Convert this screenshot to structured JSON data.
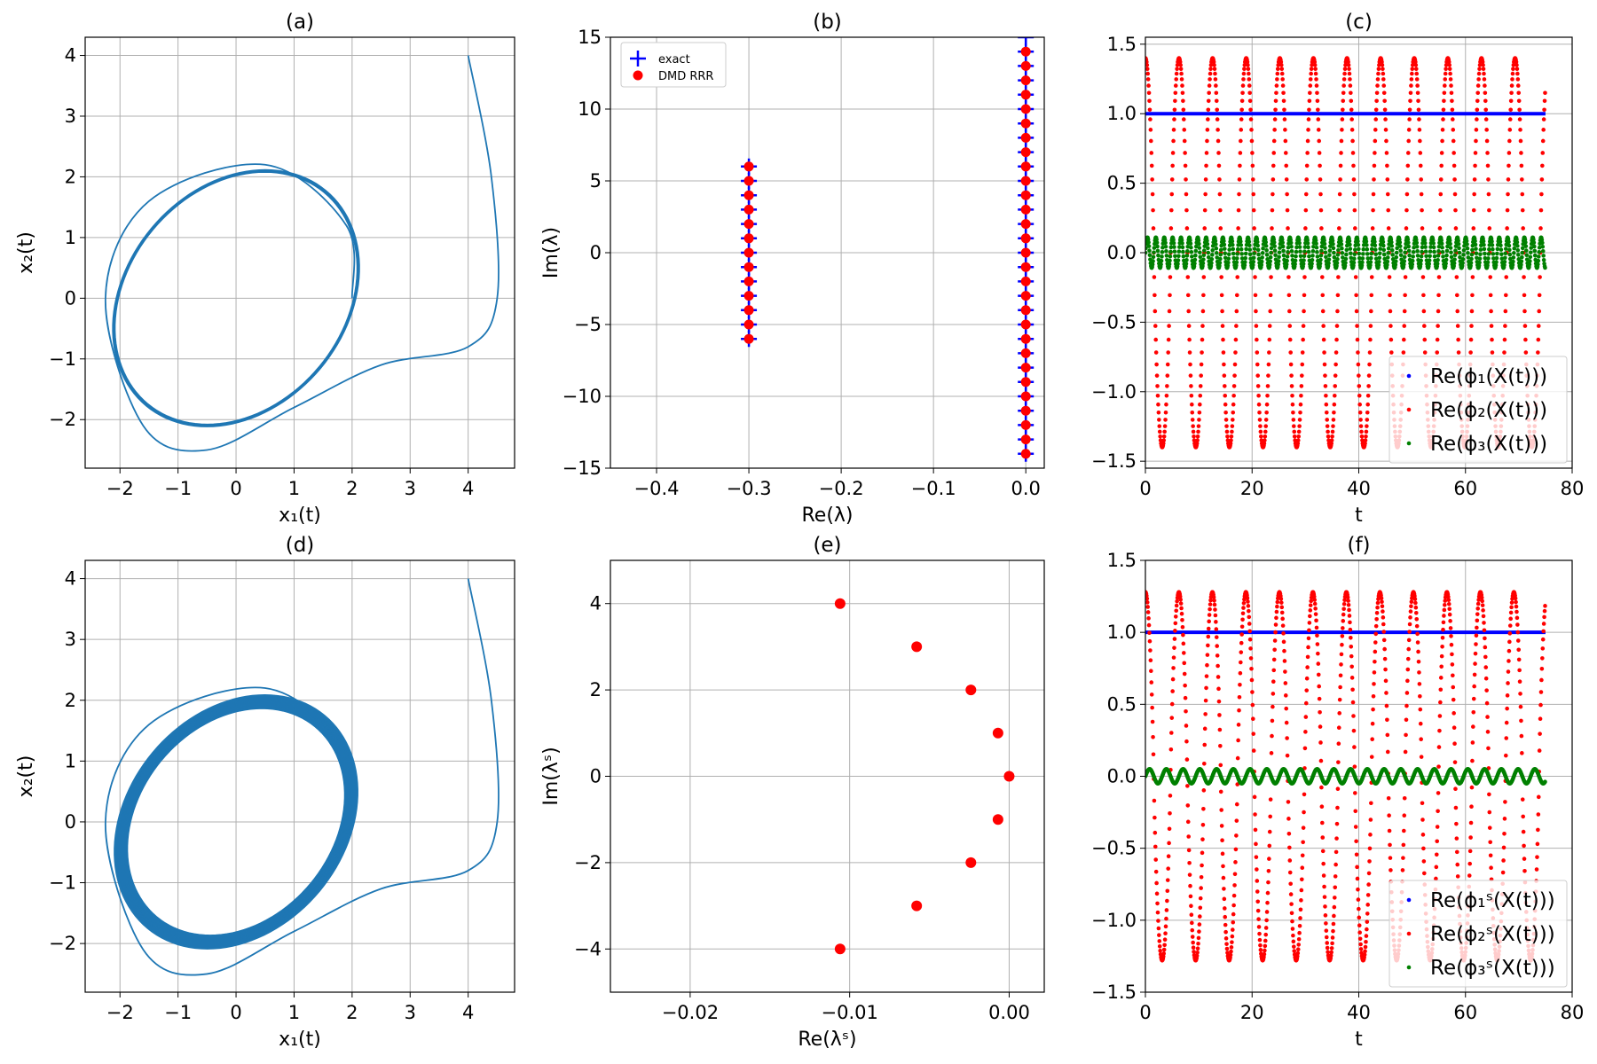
{
  "colors": {
    "trajectory": "#1f77b4",
    "dmd": "#ff0000",
    "exact": "#0000ff",
    "phi1": "#0000ff",
    "phi2": "#ff0000",
    "phi3": "#008000",
    "grid": "#b0b0b0"
  },
  "chart_data": [
    {
      "id": "a",
      "type": "line",
      "title": "(a)",
      "xlabel": "x₁(t)",
      "ylabel": "x₂(t)",
      "xlim": [
        -2.6,
        4.8
      ],
      "ylim": [
        -2.8,
        4.3
      ],
      "xticks": [
        -2,
        -1,
        0,
        1,
        2,
        3,
        4
      ],
      "yticks": [
        -2,
        -1,
        0,
        1,
        2,
        3,
        4
      ],
      "grid": true,
      "series": [
        {
          "name": "trajectory",
          "description": "Van der Pol type trajectory starting at (4,4), converging to a single limit cycle",
          "start": [
            4,
            4
          ],
          "transient": [
            [
              4.0,
              4.0
            ],
            [
              4.4,
              2.0
            ],
            [
              4.5,
              0.0
            ],
            [
              4.0,
              -0.8
            ],
            [
              2.5,
              -1.1
            ],
            [
              1.0,
              -1.8
            ],
            [
              -0.5,
              -2.5
            ],
            [
              -1.6,
              -2.1
            ],
            [
              -2.25,
              0.0
            ],
            [
              -1.5,
              1.6
            ],
            [
              0.5,
              2.2
            ],
            [
              1.9,
              1.2
            ],
            [
              2.0,
              0.0
            ]
          ],
          "limit_cycle_band": [
            0
          ]
        }
      ]
    },
    {
      "id": "b",
      "type": "scatter",
      "title": "(b)",
      "xlabel": "Re(λ)",
      "ylabel": "Im(λ)",
      "xlim": [
        -0.45,
        0.02
      ],
      "ylim": [
        -15,
        15
      ],
      "xticks": [
        -0.4,
        -0.3,
        -0.2,
        -0.1,
        0.0
      ],
      "yticks": [
        -15,
        -10,
        -5,
        0,
        5,
        10,
        15
      ],
      "grid": true,
      "legend": {
        "position": "upper-left",
        "entries": [
          "exact",
          "DMD RRR"
        ]
      },
      "series": [
        {
          "name": "exact",
          "marker": "plus",
          "points_x0_im": [
            -14,
            -13,
            -12,
            -11,
            -10,
            -9,
            -8,
            -7,
            -6,
            -5,
            -4,
            -3,
            -2,
            -1,
            0,
            1,
            2,
            3,
            4,
            5,
            6,
            7,
            8,
            9,
            10,
            11,
            12,
            13,
            14,
            15
          ],
          "points_xm03_im": [
            -6,
            -5,
            -4,
            -3,
            -2,
            -1,
            0,
            1,
            2,
            3,
            4,
            5,
            6
          ]
        },
        {
          "name": "DMD RRR",
          "marker": "circle",
          "points_x0_im": [
            -14,
            -13,
            -12,
            -11,
            -10,
            -9,
            -8,
            -7,
            -6,
            -5,
            -4,
            -3,
            -2,
            -1,
            0,
            1,
            2,
            3,
            4,
            5,
            6,
            7,
            8,
            9,
            10,
            11,
            12,
            13,
            14
          ],
          "points_xm03_im": [
            -6,
            -5,
            -4,
            -3,
            -2,
            -1,
            0,
            1,
            2,
            3,
            4,
            5,
            6
          ]
        }
      ]
    },
    {
      "id": "c",
      "type": "scatter",
      "title": "(c)",
      "xlabel": "t",
      "ylabel": "",
      "xlim": [
        0,
        80
      ],
      "ylim": [
        -1.55,
        1.55
      ],
      "xticks": [
        0,
        20,
        40,
        60,
        80
      ],
      "yticks": [
        -1.5,
        -1.0,
        -0.5,
        0.0,
        0.5,
        1.0,
        1.5
      ],
      "grid": true,
      "legend": {
        "position": "lower-right",
        "entries": [
          "Re(ϕ₁(X(t)))",
          "Re(ϕ₂(X(t)))",
          "Re(ϕ₃(X(t)))"
        ]
      },
      "series": [
        {
          "name": "Re(ϕ₁(X(t)))",
          "t_range": [
            0,
            75
          ],
          "value": 1.0
        },
        {
          "name": "Re(ϕ₂(X(t)))",
          "t_range": [
            0,
            75
          ],
          "amplitude": 1.4,
          "period": 6.3
        },
        {
          "name": "Re(ϕ₃(X(t)))",
          "t_range": [
            0,
            75
          ],
          "amplitude": 0.11,
          "period": 1.57
        }
      ]
    },
    {
      "id": "d",
      "type": "line",
      "title": "(d)",
      "xlabel": "x₁(t)",
      "ylabel": "x₂(t)",
      "xlim": [
        -2.6,
        4.8
      ],
      "ylim": [
        -2.8,
        4.3
      ],
      "xticks": [
        -2,
        -1,
        0,
        1,
        2,
        3,
        4
      ],
      "yticks": [
        -2,
        -1,
        0,
        1,
        2,
        3,
        4
      ],
      "grid": true,
      "series": [
        {
          "name": "trajectory",
          "description": "trajectory starting at (4,4) converging to a thick band of cycles",
          "start": [
            4,
            4
          ],
          "transient": [
            [
              4.0,
              4.0
            ],
            [
              4.4,
              2.0
            ],
            [
              4.5,
              0.0
            ],
            [
              4.0,
              -0.8
            ],
            [
              2.5,
              -1.1
            ],
            [
              1.0,
              -1.8
            ],
            [
              -0.5,
              -2.5
            ],
            [
              -1.6,
              -2.1
            ],
            [
              -2.25,
              0.0
            ],
            [
              -1.5,
              1.6
            ],
            [
              0.5,
              2.2
            ],
            [
              1.9,
              1.2
            ],
            [
              2.0,
              0.0
            ]
          ],
          "limit_cycle_band": [
            -0.2,
            0
          ]
        }
      ]
    },
    {
      "id": "e",
      "type": "scatter",
      "title": "(e)",
      "xlabel": "Re(λˢ)",
      "ylabel": "Im(λˢ)",
      "xlim": [
        -0.025,
        0.0022
      ],
      "ylim": [
        -5,
        5
      ],
      "xticks": [
        -0.02,
        -0.01,
        0.0
      ],
      "xticklabels": [
        "−0.02",
        "−0.01",
        "0.00"
      ],
      "yticks": [
        -4,
        -2,
        0,
        2,
        4
      ],
      "grid": true,
      "series": [
        {
          "name": "eigenvalues",
          "marker": "circle",
          "x": [
            -0.0106,
            -0.0058,
            -0.0024,
            -0.0007,
            0.0,
            -0.0007,
            -0.0024,
            -0.0058,
            -0.0106
          ],
          "y": [
            4,
            3,
            2,
            1,
            0,
            -1,
            -2,
            -3,
            -4
          ]
        }
      ]
    },
    {
      "id": "f",
      "type": "scatter",
      "title": "(f)",
      "xlabel": "t",
      "ylabel": "",
      "xlim": [
        0,
        80
      ],
      "ylim": [
        -1.5,
        1.5
      ],
      "xticks": [
        0,
        20,
        40,
        60,
        80
      ],
      "yticks": [
        -1.5,
        -1.0,
        -0.5,
        0.0,
        0.5,
        1.0,
        1.5
      ],
      "grid": true,
      "legend": {
        "position": "lower-right",
        "entries": [
          "Re(ϕ₁ˢ(X(t)))",
          "Re(ϕ₂ˢ(X(t)))",
          "Re(ϕ₃ˢ(X(t)))"
        ]
      },
      "series": [
        {
          "name": "Re(ϕ₁ˢ(X(t)))",
          "t_range": [
            0,
            75
          ],
          "value": 1.0
        },
        {
          "name": "Re(ϕ₂ˢ(X(t)))",
          "t_range": [
            0,
            75
          ],
          "amplitude": 1.28,
          "period": 6.28
        },
        {
          "name": "Re(ϕ₃ˢ(X(t)))",
          "t_range": [
            0,
            75
          ],
          "amplitude": 0.05,
          "period": 3.14
        }
      ]
    }
  ]
}
